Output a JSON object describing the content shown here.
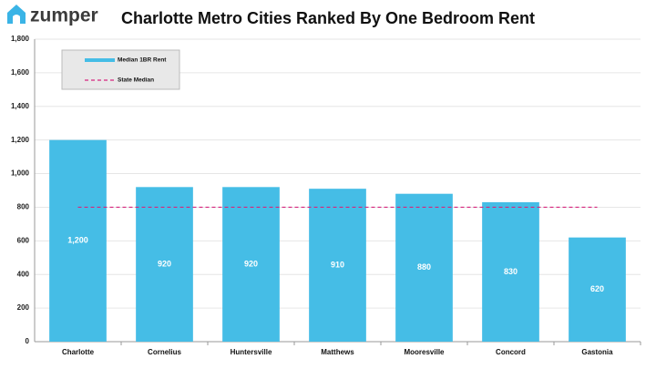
{
  "logo": "zumper",
  "chart_data": {
    "type": "bar",
    "title": "Charlotte Metro Cities Ranked By One Bedroom Rent",
    "categories": [
      "Charlotte",
      "Cornelius",
      "Huntersville",
      "Matthews",
      "Mooresville",
      "Concord",
      "Gastonia"
    ],
    "series": [
      {
        "name": "Median 1BR Rent",
        "color": "#45bde6",
        "values": [
          1200,
          920,
          920,
          910,
          880,
          830,
          620
        ],
        "value_labels": [
          "1,200",
          "920",
          "920",
          "910",
          "880",
          "830",
          "620"
        ]
      }
    ],
    "reference_lines": [
      {
        "name": "State Median",
        "value": 800,
        "color": "#d6267e"
      }
    ],
    "ylim": [
      0,
      1800
    ],
    "yticks": [
      0,
      200,
      400,
      600,
      800,
      {
        "value": 1000,
        "label": "1,000"
      },
      {
        "value": 1200,
        "label": "1,200"
      },
      {
        "value": 1400,
        "label": "1,400"
      },
      {
        "value": 1600,
        "label": "1,600"
      },
      {
        "value": 1800,
        "label": "1,800"
      }
    ],
    "grid": true
  }
}
